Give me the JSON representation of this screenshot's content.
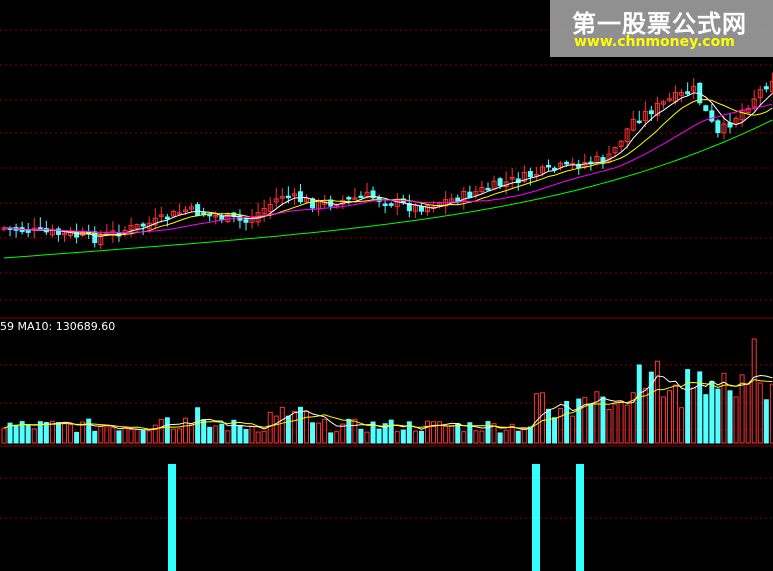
{
  "watermark": {
    "title": "第一股票公式网",
    "url": "www.chnmoney.com"
  },
  "volume_panel": {
    "label_prefix": "59",
    "ma_label": "MA10:",
    "ma_value": "130689.60"
  },
  "colors": {
    "up": "#ff3232",
    "down": "#54ffff",
    "grid": "#8b0000",
    "ma5": "#ffffff",
    "ma10": "#ffff00",
    "ma20": "#ff00ff",
    "ma60": "#00ff00",
    "vol_ma": "#ffffe0",
    "signal": "#33ffff",
    "background": "#000000"
  },
  "chart_data": [
    {
      "type": "candlestick",
      "panel": "price",
      "series_count": 4,
      "bar_count": 128,
      "moving_averages": [
        "MA5",
        "MA10",
        "MA20",
        "MA60"
      ],
      "grid": true
    },
    {
      "type": "bar",
      "panel": "volume",
      "ma_label": "MA10",
      "ma_value": 130689.6,
      "grid": true
    },
    {
      "type": "bar",
      "panel": "signal",
      "signal_bars": 3,
      "signal_indices": [
        28,
        89,
        96
      ]
    }
  ]
}
